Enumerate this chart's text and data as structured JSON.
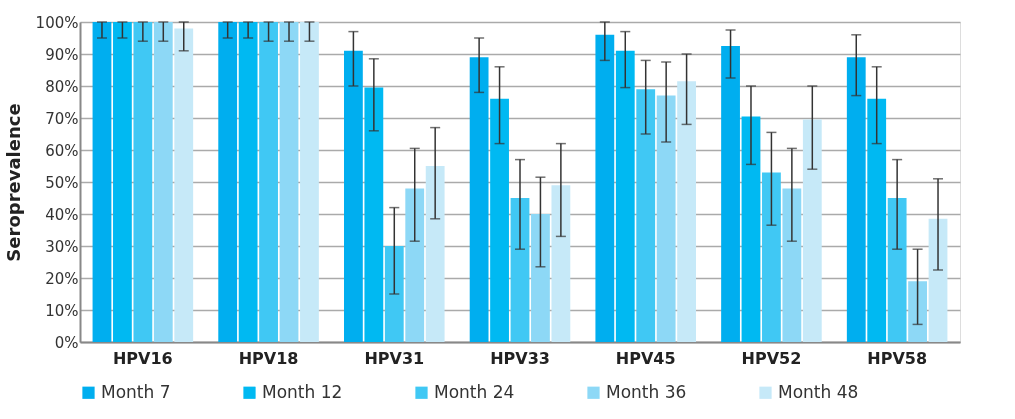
{
  "chart_data": {
    "type": "bar",
    "ylabel": "Seroprevalence",
    "categories": [
      "HPV16",
      "HPV18",
      "HPV31",
      "HPV33",
      "HPV45",
      "HPV52",
      "HPV58"
    ],
    "ylim": [
      0,
      100
    ],
    "yticks": [
      {
        "value": 0,
        "label": "0%"
      },
      {
        "value": 10,
        "label": "10%"
      },
      {
        "value": 20,
        "label": "20%"
      },
      {
        "value": 30,
        "label": "30%"
      },
      {
        "value": 40,
        "label": "40%"
      },
      {
        "value": 50,
        "label": "50%"
      },
      {
        "value": 60,
        "label": "60%"
      },
      {
        "value": 70,
        "label": "70%"
      },
      {
        "value": 80,
        "label": "80%"
      },
      {
        "value": 90,
        "label": "90%"
      },
      {
        "value": 100,
        "label": "100%"
      }
    ],
    "grid": "y",
    "legend": "bottom",
    "series": [
      {
        "name": "Month 7",
        "color": "#00aeef",
        "values": [
          100,
          100,
          91,
          89,
          96,
          92.5,
          89
        ],
        "errors": [
          [
            95,
            100
          ],
          [
            95,
            100
          ],
          [
            80,
            97
          ],
          [
            78,
            95
          ],
          [
            88,
            100
          ],
          [
            82.5,
            97.5
          ],
          [
            77,
            96
          ]
        ]
      },
      {
        "name": "Month 12",
        "color": "#00b9f2",
        "values": [
          100,
          100,
          79.5,
          76,
          91,
          70.5,
          76
        ],
        "errors": [
          [
            95,
            100
          ],
          [
            95,
            100
          ],
          [
            66,
            88.5
          ],
          [
            62,
            86
          ],
          [
            79.5,
            97
          ],
          [
            55.5,
            80
          ],
          [
            62,
            86
          ]
        ]
      },
      {
        "name": "Month 24",
        "color": "#40c8f4",
        "values": [
          100,
          100,
          30,
          45,
          79,
          53,
          45
        ],
        "errors": [
          [
            94,
            100
          ],
          [
            94,
            100
          ],
          [
            15,
            42
          ],
          [
            29,
            57
          ],
          [
            65,
            88
          ],
          [
            36.5,
            65.5
          ],
          [
            29,
            57
          ]
        ]
      },
      {
        "name": "Month 36",
        "color": "#8dd8f6",
        "values": [
          100,
          100,
          48,
          40,
          77,
          48,
          19
        ],
        "errors": [
          [
            94,
            100
          ],
          [
            94,
            100
          ],
          [
            31.5,
            60.5
          ],
          [
            23.5,
            51.5
          ],
          [
            62.5,
            87.5
          ],
          [
            31.5,
            60.5
          ],
          [
            5.5,
            29
          ]
        ]
      },
      {
        "name": "Month 48",
        "color": "#c6e9f8",
        "values": [
          98,
          100,
          55,
          49,
          81.5,
          69.5,
          38.5
        ],
        "errors": [
          [
            91,
            100
          ],
          [
            94,
            100
          ],
          [
            38.5,
            67
          ],
          [
            33,
            62
          ],
          [
            68,
            90
          ],
          [
            54,
            80
          ],
          [
            22.5,
            51
          ]
        ]
      }
    ]
  }
}
